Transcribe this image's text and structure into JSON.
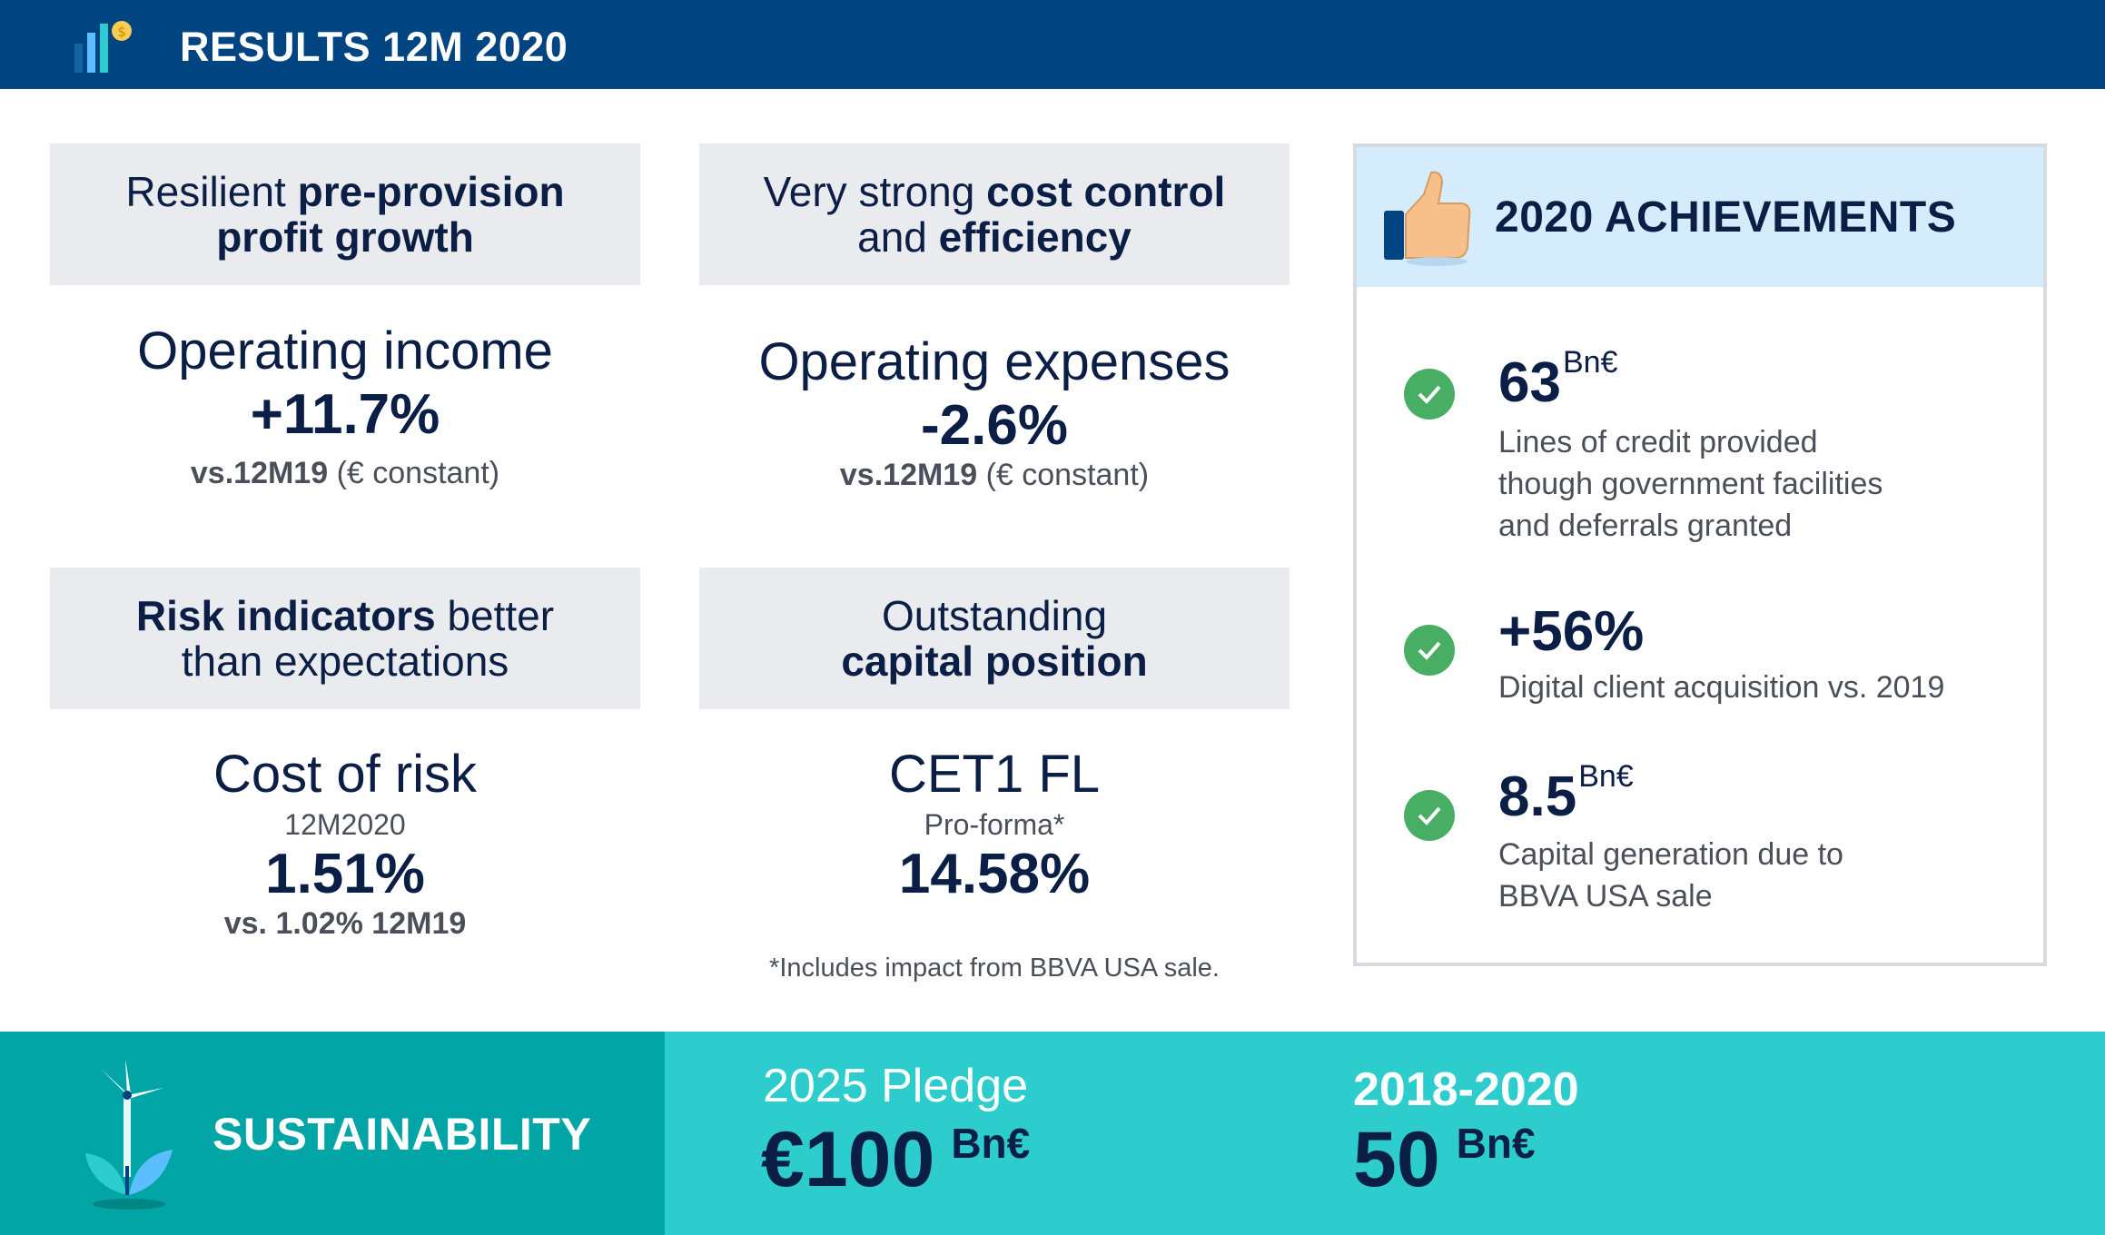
{
  "header": {
    "title": "RESULTS 12M 2020"
  },
  "cards": [
    {
      "head": {
        "light1": "Resilient ",
        "bold1": "pre-provision",
        "bold2": "profit growth"
      },
      "metric": {
        "title": "Operating income",
        "value": "+11.7%",
        "sub_bold": "vs.12M19",
        "sub_light": " (€ constant)"
      }
    },
    {
      "head": {
        "light1": "Very strong ",
        "bold1": "cost control",
        "light2": "and ",
        "bold2": "efficiency"
      },
      "metric": {
        "title": "Operating expenses",
        "value": "-2.6%",
        "sub_bold": "vs.12M19",
        "sub_light": " (€ constant)"
      }
    },
    {
      "head": {
        "bold1": "Risk indicators",
        "light1": " better",
        "light2": "than expectations"
      },
      "metric": {
        "title": "Cost of risk",
        "period": "12M2020",
        "value": "1.51%",
        "sub_bold": "vs. 1.02% 12M19"
      }
    },
    {
      "head": {
        "light1": "Outstanding",
        "bold1": "capital position"
      },
      "metric": {
        "title": "CET1 FL",
        "period": "Pro-forma*",
        "value": "14.58%"
      }
    }
  ],
  "footnote": "*Includes impact from BBVA USA sale.",
  "achievements": {
    "title": "2020 ACHIEVEMENTS",
    "items": [
      {
        "value": "63",
        "unit": "Bn€",
        "desc": [
          "Lines of credit provided",
          "though government facilities",
          "and deferrals granted"
        ]
      },
      {
        "value": "+56%",
        "unit": "",
        "desc": [
          "Digital client acquisition vs. 2019"
        ]
      },
      {
        "value": "8.5",
        "unit": "Bn€",
        "desc": [
          "Capital generation due to",
          "BBVA USA sale"
        ]
      }
    ]
  },
  "sustainability": {
    "title": "SUSTAINABILITY",
    "pledge": {
      "label": "2025 Pledge",
      "value": "€100",
      "unit": "Bn€"
    },
    "achieved": {
      "label": "2018-2020",
      "value": "50",
      "unit": "Bn€"
    }
  },
  "colors": {
    "header": "#004481",
    "navy": "#0a1e46",
    "card_bg": "#e9ebee",
    "ach_head": "#d4ecfc",
    "check": "#48ae64",
    "teal_dark": "#02a5a5",
    "teal_light": "#2dcccd"
  }
}
